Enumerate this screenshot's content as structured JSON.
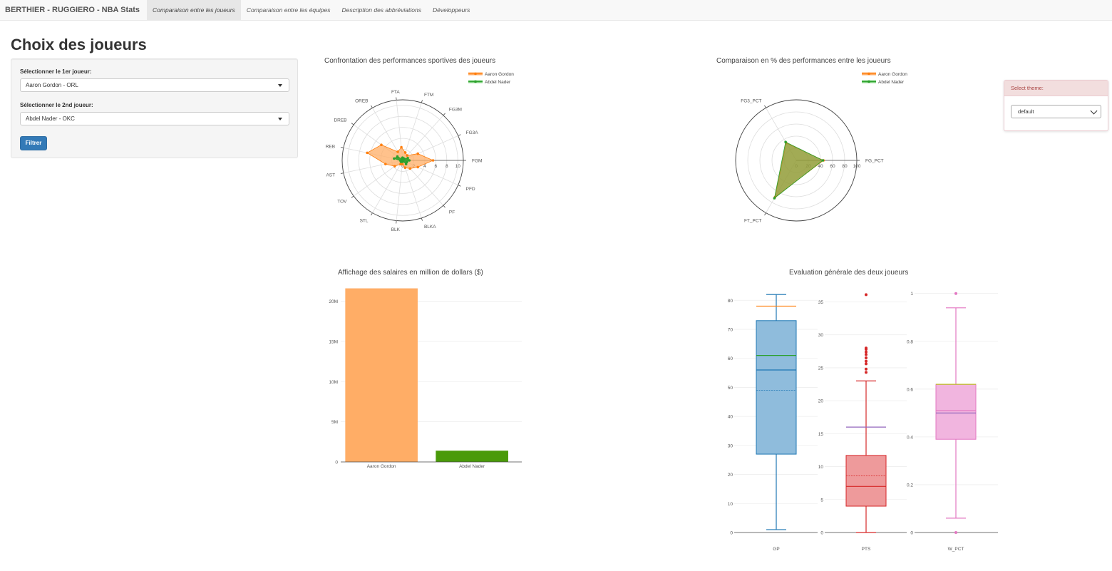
{
  "navbar": {
    "brand": "BERTHIER - RUGGIERO - NBA Stats",
    "tabs": [
      {
        "label": "Comparaison entre les joueurs",
        "active": true
      },
      {
        "label": "Comparaison entre les équipes",
        "active": false
      },
      {
        "label": "Description des abbréviations",
        "active": false
      },
      {
        "label": "Développeurs",
        "active": false
      }
    ]
  },
  "sidebar": {
    "title": "Choix des joueurs",
    "player1_label": "Sélectionner le 1er joueur:",
    "player1_value": "Aaron Gordon - ORL",
    "player2_label": "Sélectionner le 2nd joueur:",
    "player2_value": "Abdel Nader - OKC",
    "filter_button": "Filtrer"
  },
  "theme": {
    "header": "Select theme:",
    "value": "default"
  },
  "colors": {
    "orange": "#ff7f0e",
    "orange_fill": "#ffad66",
    "green": "#2ca02c",
    "green_bar": "#4a9a0a",
    "blue": "#1f77b4",
    "red": "#d62728",
    "pink": "#e377c2",
    "purple": "#9467bd",
    "olive_fill": "#7a9a30",
    "primary_button": "#337ab7"
  },
  "chart_data": [
    {
      "type": "radar",
      "title": "Confrontation des performances sportives des joueurs",
      "legend_position": "top-right",
      "axes": [
        "FGM",
        "FG3A",
        "FG3M",
        "FTM",
        "FTA",
        "OREB",
        "DREB",
        "REB",
        "AST",
        "TOV",
        "STL",
        "BLK",
        "BLKA",
        "PF",
        "PFD"
      ],
      "axis_labels": [
        "FGM",
        "FG3A",
        "FG3M",
        "FTM",
        "FTA",
        "OREB",
        "DREB",
        "REB",
        "AST",
        "TOV",
        "STL",
        "BLK",
        "BLKA",
        "PF",
        "PFD"
      ],
      "radial_range": [
        0,
        11
      ],
      "radial_ticks": [
        "0",
        "2",
        "4",
        "6",
        "8",
        "10"
      ],
      "series": [
        {
          "name": "Aaron Gordon",
          "values": [
            5.5,
            3.0,
            1.2,
            1.5,
            2.4,
            1.8,
            4.8,
            6.6,
            3.2,
            1.8,
            0.8,
            0.7,
            1.4,
            2.0,
            3.0
          ]
        },
        {
          "name": "Abdel Nader",
          "values": [
            1.2,
            1.0,
            0.4,
            0.4,
            0.5,
            0.3,
            1.2,
            1.6,
            0.4,
            0.4,
            0.3,
            0.2,
            0.2,
            0.9,
            0.8
          ]
        }
      ]
    },
    {
      "type": "radar",
      "title": "Comparaison en % des performances entre les joueurs",
      "legend_position": "top-right",
      "axes": [
        "FG_PCT",
        "FG3_PCT",
        "FT_PCT"
      ],
      "axis_labels": [
        "FG_PCT",
        "FG3_PCT",
        "FT_PCT"
      ],
      "radial_range": [
        0,
        100
      ],
      "radial_ticks": [
        "0",
        "20",
        "40",
        "60",
        "80",
        "100"
      ],
      "series": [
        {
          "name": "Aaron Gordon",
          "values": [
            45,
            33,
            70
          ]
        },
        {
          "name": "Abdel Nader",
          "values": [
            44,
            35,
            72
          ]
        }
      ]
    },
    {
      "type": "bar",
      "title": "Affichage des salaires en million de dollars ($)",
      "categories": [
        "Aaron Gordon",
        "Abdel Nader"
      ],
      "values": [
        21.6,
        1.4
      ],
      "ylim": [
        0,
        22
      ],
      "y_ticks": [
        "0",
        "5M",
        "10M",
        "15M",
        "20M"
      ],
      "y_tick_values": [
        0,
        5,
        10,
        15,
        20
      ]
    },
    {
      "type": "box",
      "title": "Evaluation générale des deux joueurs",
      "panels": [
        {
          "label": "GP",
          "ylim": [
            0,
            84
          ],
          "y_ticks": [
            0,
            10,
            20,
            30,
            40,
            50,
            60,
            70,
            80
          ],
          "min": 1,
          "q1": 27,
          "median": 56,
          "mean": 49,
          "q3": 73,
          "max": 82,
          "outliers": [],
          "player_lines": [
            {
              "name": "Aaron Gordon",
              "value": 78
            },
            {
              "name": "Abdel Nader",
              "value": 61
            }
          ]
        },
        {
          "label": "PTS",
          "ylim": [
            0,
            37
          ],
          "y_ticks": [
            0,
            5,
            10,
            15,
            20,
            25,
            30,
            35
          ],
          "min": 0,
          "q1": 4,
          "median": 7,
          "mean": 8.6,
          "q3": 11.7,
          "max": 23,
          "outliers": [
            24.3,
            24.8,
            25.6,
            26.0,
            26.5,
            27.0,
            27.4,
            27.8,
            28.0,
            36.1
          ],
          "player_lines": [
            {
              "name": "Aaron Gordon",
              "value": 16
            }
          ]
        },
        {
          "label": "W_PCT",
          "ylim": [
            0,
            1.02
          ],
          "y_ticks": [
            0,
            0.2,
            0.4,
            0.6,
            0.8,
            1
          ],
          "min": 0.06,
          "q1": 0.39,
          "median": 0.51,
          "mean": 0.5,
          "q3": 0.62,
          "max": 0.94,
          "outliers": [
            0,
            1
          ],
          "player_lines": [
            {
              "name": "Aaron Gordon",
              "value": 0.62
            },
            {
              "name": "Abdel Nader",
              "value": 0.5
            }
          ]
        }
      ]
    }
  ]
}
